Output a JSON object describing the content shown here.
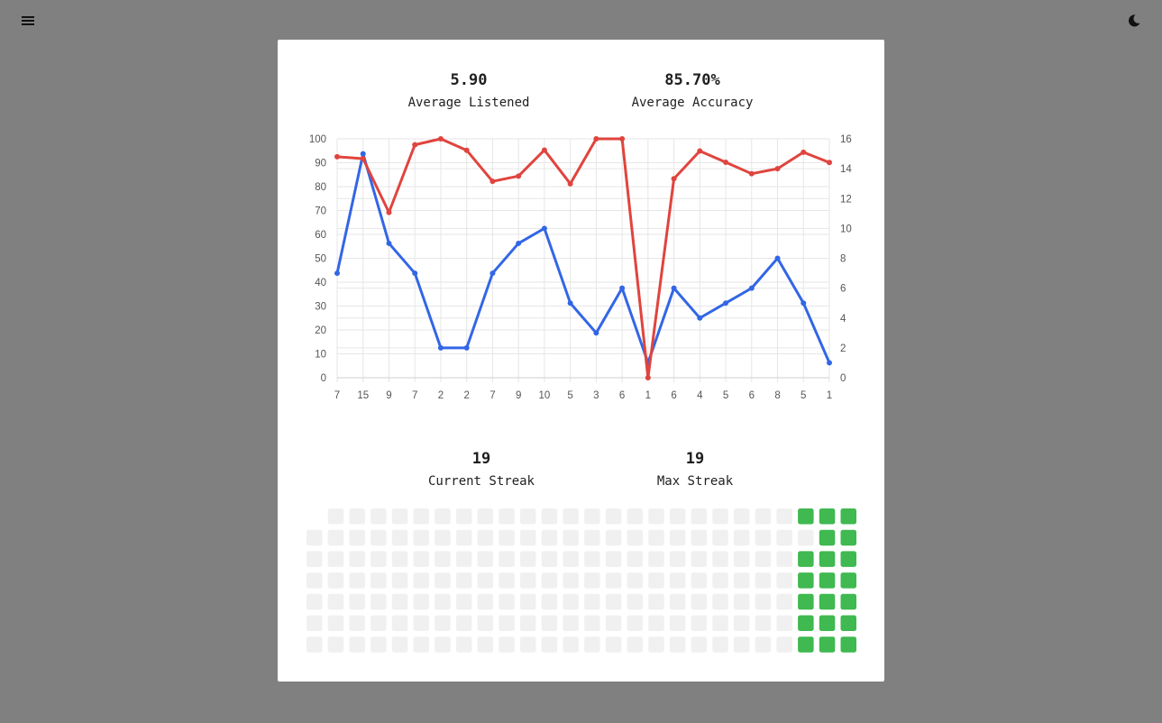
{
  "header": {
    "menu_icon": "hamburger-menu-icon",
    "theme_icon": "moon-icon"
  },
  "stats": {
    "average_listened": {
      "value": "5.90",
      "label": "Average Listened"
    },
    "average_accuracy": {
      "value": "85.70%",
      "label": "Average Accuracy"
    },
    "current_streak": {
      "value": "19",
      "label": "Current Streak"
    },
    "max_streak": {
      "value": "19",
      "label": "Max Streak"
    }
  },
  "colors": {
    "overlay": "#808080",
    "accuracy_line": "#e0443e",
    "listened_line": "#3366e6",
    "heat_active": "#3fb950",
    "heat_empty": "#f0f0f0"
  },
  "chart_data": {
    "type": "line",
    "categories": [
      "7",
      "15",
      "9",
      "7",
      "2",
      "2",
      "7",
      "9",
      "10",
      "5",
      "3",
      "6",
      "1",
      "6",
      "4",
      "5",
      "6",
      "8",
      "5",
      "1"
    ],
    "y_left_ticks": [
      "0",
      "10",
      "20",
      "30",
      "40",
      "50",
      "60",
      "70",
      "80",
      "90",
      "100"
    ],
    "y_right_ticks": [
      "0",
      "2",
      "4",
      "6",
      "8",
      "10",
      "12",
      "14",
      "16"
    ],
    "ylim_left": [
      0,
      100
    ],
    "ylim_right": [
      0,
      16
    ],
    "grid": true,
    "series": [
      {
        "axis": "left",
        "color": "#e0443e",
        "values": [
          92.5,
          91.7,
          69.2,
          97.5,
          100,
          95.2,
          82.2,
          84.4,
          95.3,
          81.2,
          100,
          100,
          0,
          83.3,
          94.9,
          90.2,
          85.4,
          87.5,
          94.4,
          90.1
        ]
      },
      {
        "axis": "right",
        "color": "#3366e6",
        "values": [
          7,
          15,
          9,
          7,
          2,
          2,
          7,
          9,
          10,
          5,
          3,
          6,
          1,
          6,
          4,
          5,
          6,
          8,
          5,
          1
        ]
      }
    ]
  },
  "heatmap": {
    "rows": 7,
    "columns": 26,
    "active_cells": [
      [
        0,
        23
      ],
      [
        0,
        24
      ],
      [
        0,
        25
      ],
      [
        1,
        24
      ],
      [
        1,
        25
      ],
      [
        2,
        23
      ],
      [
        2,
        24
      ],
      [
        2,
        25
      ],
      [
        3,
        23
      ],
      [
        3,
        24
      ],
      [
        3,
        25
      ],
      [
        4,
        23
      ],
      [
        4,
        24
      ],
      [
        4,
        25
      ],
      [
        5,
        23
      ],
      [
        5,
        24
      ],
      [
        5,
        25
      ],
      [
        6,
        23
      ],
      [
        6,
        24
      ],
      [
        6,
        25
      ]
    ],
    "hidden_cells": [
      [
        0,
        0
      ]
    ]
  }
}
